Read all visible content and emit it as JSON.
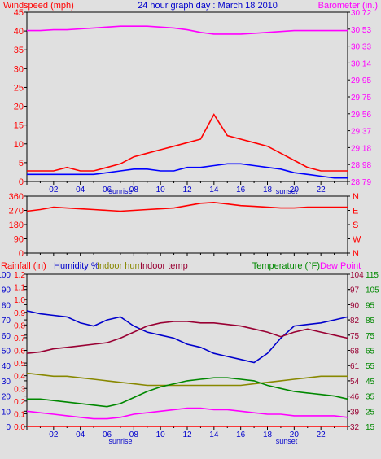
{
  "title": "24 hour graph day : March 18 2010",
  "chart_data": [
    {
      "type": "line",
      "id": "wind-baro",
      "left_label": "Windspeed (mph)",
      "right_label": "Barometer (in.)",
      "left_ticks": [
        "0",
        "5",
        "10",
        "15",
        "20",
        "25",
        "30",
        "35",
        "40",
        "45"
      ],
      "right_ticks": [
        "28.79",
        "28.98",
        "29.18",
        "29.37",
        "29.56",
        "29.75",
        "29.95",
        "30.14",
        "30.33",
        "30.53",
        "30.72"
      ],
      "x_ticks": [
        "02",
        "04",
        "06",
        "08",
        "10",
        "12",
        "14",
        "16",
        "18",
        "20",
        "22"
      ],
      "sunrise_label": "sunrise",
      "sunset_label": "sunset",
      "ylim_left": [
        0,
        48
      ],
      "ylim_right": [
        28.79,
        30.72
      ],
      "xlim": [
        0,
        24
      ],
      "series": [
        {
          "role": "barometer",
          "axis": "right",
          "color": "#ff00ff",
          "x": [
            0,
            1,
            2,
            3,
            4,
            5,
            6,
            7,
            8,
            9,
            10,
            11,
            12,
            13,
            14,
            15,
            16,
            17,
            18,
            19,
            20,
            21,
            22,
            23,
            24
          ],
          "y": [
            30.51,
            30.51,
            30.52,
            30.52,
            30.53,
            30.54,
            30.55,
            30.56,
            30.56,
            30.56,
            30.55,
            30.54,
            30.52,
            30.49,
            30.47,
            30.47,
            30.47,
            30.48,
            30.49,
            30.5,
            30.51,
            30.51,
            30.51,
            30.51,
            30.51
          ]
        },
        {
          "role": "wind-average",
          "axis": "left",
          "color": "#0000ff",
          "x": [
            0,
            2,
            4,
            5,
            6,
            7,
            8,
            9,
            10,
            11,
            12,
            13,
            14,
            15,
            16,
            17,
            18,
            19,
            20,
            21,
            22,
            23,
            24
          ],
          "y": [
            2,
            2,
            2,
            2,
            2.5,
            3,
            3.5,
            3.5,
            3,
            3,
            4,
            4,
            4.5,
            5,
            5,
            4.5,
            4,
            3.5,
            2.5,
            2,
            1.5,
            1,
            1
          ]
        },
        {
          "role": "wind-gust",
          "axis": "left",
          "color": "#ff0000",
          "x": [
            0,
            1,
            2,
            3,
            4,
            5,
            6,
            7,
            8,
            9,
            10,
            11,
            12,
            13,
            14,
            15,
            16,
            17,
            18,
            19,
            20,
            21,
            22,
            23,
            24
          ],
          "y": [
            3,
            3,
            3,
            4,
            3,
            3,
            4,
            5,
            7,
            8,
            9,
            10,
            11,
            12,
            19,
            13,
            12,
            11,
            10,
            8,
            6,
            4,
            3,
            3,
            3
          ]
        }
      ]
    },
    {
      "type": "line",
      "id": "direction",
      "left_ticks": [
        "0",
        "90",
        "180",
        "270",
        "360"
      ],
      "right_ticks": [
        "N",
        "W",
        "S",
        "E",
        "N"
      ],
      "ylim": [
        0,
        360
      ],
      "series": [
        {
          "role": "wind-direction",
          "color": "#ff0000",
          "x": [
            0,
            1,
            2,
            3,
            4,
            5,
            6,
            7,
            8,
            9,
            10,
            11,
            12,
            13,
            14,
            15,
            16,
            17,
            18,
            19,
            20,
            21,
            22,
            23,
            24
          ],
          "y": [
            265,
            275,
            290,
            285,
            280,
            275,
            270,
            265,
            270,
            275,
            280,
            285,
            300,
            315,
            320,
            310,
            300,
            295,
            290,
            285,
            285,
            290,
            290,
            290,
            290
          ]
        }
      ]
    },
    {
      "type": "line",
      "id": "rain-hum-temp",
      "rain_label": "Rainfall (in)",
      "humidity_label": "Humidity %",
      "indoor_hum_label": "Indoor hum",
      "indoor_temp_label": "Indoor temp",
      "temperature_label": "Temperature (°F)",
      "dewpoint_label": "Dew Point",
      "rain_ticks": [
        "0.0",
        "0.1",
        "0.2",
        "0.3",
        "0.4",
        "0.5",
        "0.6",
        "0.7",
        "0.8",
        "0.9",
        "1.0",
        "1.1",
        "1.2"
      ],
      "humidity_ticks": [
        "0",
        "10",
        "20",
        "30",
        "40",
        "50",
        "60",
        "70",
        "80",
        "90",
        "100"
      ],
      "indoor_temp_ticks": [
        "32",
        "39",
        "46",
        "54",
        "61",
        "68",
        "75",
        "82",
        "90",
        "97",
        "104"
      ],
      "temperature_ticks": [
        "15",
        "25",
        "35",
        "45",
        "55",
        "65",
        "75",
        "85",
        "95",
        "105",
        "115"
      ],
      "x_ticks": [
        "02",
        "04",
        "06",
        "08",
        "10",
        "12",
        "14",
        "16",
        "18",
        "20",
        "22"
      ],
      "sunrise_label": "sunrise",
      "sunset_label": "sunset",
      "ylim_humidity": [
        0,
        100
      ],
      "series": [
        {
          "role": "outdoor-humidity",
          "color": "#0000cc",
          "x": [
            0,
            1,
            2,
            3,
            4,
            5,
            6,
            7,
            8,
            9,
            10,
            11,
            12,
            13,
            14,
            15,
            16,
            17,
            18,
            19,
            20,
            21,
            22,
            23,
            24
          ],
          "y": [
            76,
            74,
            73,
            72,
            68,
            66,
            70,
            72,
            66,
            62,
            60,
            58,
            54,
            52,
            48,
            46,
            44,
            42,
            48,
            58,
            66,
            67,
            68,
            70,
            72
          ]
        },
        {
          "role": "indoor-temp",
          "color": "#990033",
          "x": [
            0,
            1,
            2,
            3,
            4,
            5,
            6,
            7,
            8,
            9,
            10,
            11,
            12,
            13,
            14,
            15,
            16,
            17,
            18,
            19,
            20,
            21,
            22,
            23,
            24
          ],
          "y": [
            48,
            49,
            51,
            52,
            53,
            54,
            55,
            58,
            62,
            66,
            68,
            69,
            69,
            68,
            68,
            67,
            66,
            64,
            62,
            59,
            62,
            64,
            62,
            60,
            58
          ]
        },
        {
          "role": "indoor-humidity",
          "color": "#888800",
          "x": [
            0,
            1,
            2,
            3,
            4,
            5,
            6,
            7,
            8,
            9,
            10,
            11,
            12,
            13,
            14,
            15,
            16,
            17,
            18,
            19,
            20,
            21,
            22,
            23,
            24
          ],
          "y": [
            35,
            34,
            33,
            33,
            32,
            31,
            30,
            29,
            28,
            27,
            27,
            27,
            27,
            27,
            27,
            27,
            27,
            28,
            29,
            30,
            31,
            32,
            33,
            33,
            33
          ]
        },
        {
          "role": "temperature",
          "color": "#008800",
          "x": [
            0,
            1,
            2,
            3,
            4,
            5,
            6,
            7,
            8,
            9,
            10,
            11,
            12,
            13,
            14,
            15,
            16,
            17,
            18,
            19,
            20,
            21,
            22,
            23,
            24
          ],
          "y": [
            18,
            18,
            17,
            16,
            15,
            14,
            13,
            15,
            19,
            23,
            26,
            28,
            30,
            31,
            32,
            32,
            31,
            30,
            27,
            25,
            23,
            22,
            21,
            20,
            18
          ]
        },
        {
          "role": "dew-point",
          "color": "#ff00ff",
          "x": [
            0,
            1,
            2,
            3,
            4,
            5,
            6,
            7,
            8,
            9,
            10,
            11,
            12,
            13,
            14,
            15,
            16,
            17,
            18,
            19,
            20,
            21,
            22,
            23,
            24
          ],
          "y": [
            10,
            9,
            8,
            7,
            6,
            5,
            5,
            6,
            8,
            9,
            10,
            11,
            12,
            12,
            11,
            11,
            10,
            9,
            8,
            8,
            7,
            7,
            7,
            7,
            6
          ]
        },
        {
          "role": "rainfall",
          "color": "#ff0000",
          "x": [
            0,
            24
          ],
          "y": [
            0,
            0
          ]
        }
      ]
    }
  ]
}
